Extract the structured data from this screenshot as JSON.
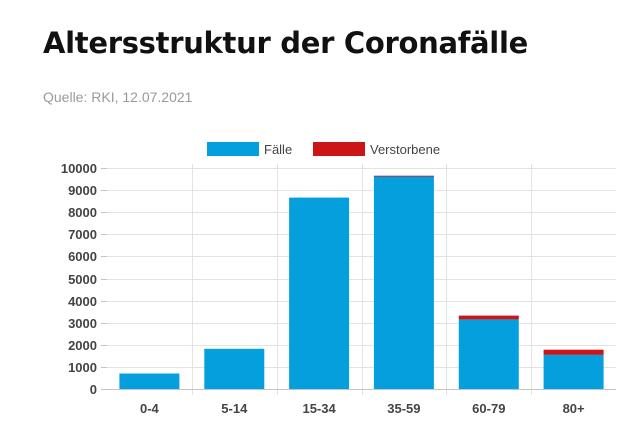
{
  "page": {
    "title": "Altersstruktur der Coronafälle",
    "subtitle": "Quelle: RKI, 12.07.2021"
  },
  "colors": {
    "faelle": "#069FDE",
    "verstorbene": "#CC1517",
    "grid": "#e3e3e3",
    "axis": "#c4c4c4",
    "text": "#444444"
  },
  "chart_data": {
    "type": "bar",
    "stacked": true,
    "categories": [
      "0-4",
      "5-14",
      "15-34",
      "35-59",
      "60-79",
      "80+"
    ],
    "series": [
      {
        "name": "Fälle",
        "values": [
          700,
          1820,
          8660,
          9640,
          3150,
          1550
        ]
      },
      {
        "name": "Verstorbene",
        "values": [
          0,
          0,
          0,
          10,
          170,
          230
        ]
      }
    ],
    "ylim": [
      0,
      10000
    ],
    "yticks": [
      0,
      1000,
      2000,
      3000,
      4000,
      5000,
      6000,
      7000,
      8000,
      9000,
      10000
    ],
    "grid": true,
    "legend": "top-center"
  }
}
